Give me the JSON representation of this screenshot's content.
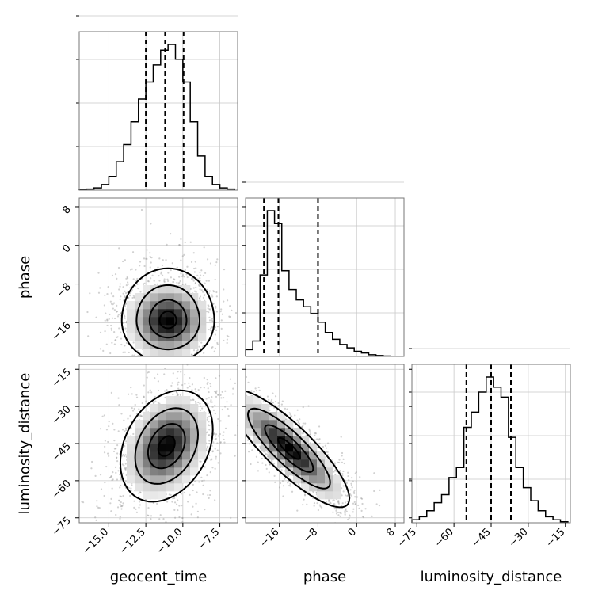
{
  "chart_data": {
    "type": "corner",
    "parameters": [
      "geocent_time",
      "phase",
      "luminosity_distance"
    ],
    "axis_labels": {
      "x": [
        "geocent_time",
        "phase",
        "luminosity_distance"
      ],
      "y": [
        "",
        "phase",
        "luminosity_distance"
      ]
    },
    "ranges": {
      "geocent_time": [
        -17.0,
        -6.3
      ],
      "phase": [
        -23.0,
        9.8
      ],
      "luminosity_distance": [
        -77,
        -13
      ]
    },
    "ticks": {
      "geocent_time": [
        -15.0,
        -12.5,
        -10.0,
        -7.5
      ],
      "phase": [
        -16,
        -8,
        0,
        8
      ],
      "luminosity_distance": [
        -75,
        -60,
        -45,
        -30,
        -15
      ]
    },
    "tick_labels": {
      "geocent_time": [
        "−15.0",
        "−12.5",
        "−10.0",
        "−7.5"
      ],
      "phase": [
        "−16",
        "−8",
        "0",
        "8"
      ],
      "luminosity_distance": [
        "−75",
        "−60",
        "−45",
        "−30",
        "−15"
      ]
    },
    "quantiles": {
      "geocent_time": [
        -12.5,
        -11.2,
        -9.95
      ],
      "phase": [
        -19.2,
        -16.2,
        -8.0
      ],
      "luminosity_distance": [
        -55,
        -45,
        -37
      ]
    },
    "histograms": {
      "geocent_time": {
        "bins": [
          -17.0,
          -16.5,
          -16.0,
          -15.5,
          -15.0,
          -14.5,
          -14.0,
          -13.5,
          -13.0,
          -12.5,
          -12.0,
          -11.5,
          -11.0,
          -10.5,
          -10.0,
          -9.5,
          -9.0,
          -8.5,
          -8.0,
          -7.5,
          -7.0,
          -6.5
        ],
        "counts": [
          0.5,
          1,
          2,
          5,
          12,
          25,
          40,
          60,
          80,
          95,
          110,
          123,
          128,
          115,
          95,
          60,
          30,
          12,
          5,
          2,
          1
        ]
      },
      "phase": {
        "bins": [
          -23.0,
          -21.5,
          -20.0,
          -18.5,
          -17.0,
          -15.5,
          -14.0,
          -12.5,
          -11.0,
          -9.5,
          -8.0,
          -6.5,
          -5.0,
          -3.5,
          -2.0,
          -0.5,
          1.0,
          2.5,
          4.0,
          5.5,
          7.0
        ],
        "counts": [
          8,
          18,
          95,
          170,
          155,
          100,
          78,
          66,
          58,
          50,
          40,
          28,
          20,
          14,
          10,
          6,
          4,
          2,
          1,
          0.5
        ]
      },
      "luminosity_distance": {
        "bins": [
          -77,
          -74,
          -71,
          -68,
          -65,
          -62,
          -59,
          -56,
          -53,
          -50,
          -47,
          -44,
          -41,
          -38,
          -35,
          -32,
          -29,
          -26,
          -23,
          -20,
          -17,
          -14
        ],
        "counts": [
          3,
          6,
          12,
          20,
          28,
          45,
          55,
          95,
          110,
          130,
          145,
          135,
          125,
          85,
          55,
          35,
          22,
          12,
          6,
          3,
          1
        ]
      }
    },
    "joint": [
      {
        "x": "geocent_time",
        "y": "phase",
        "center": [
          -11.0,
          -15.6
        ],
        "sigma": [
          1.25,
          3.5
        ],
        "rho": 0.0,
        "skew_y": 0.4
      },
      {
        "x": "geocent_time",
        "y": "luminosity_distance",
        "center": [
          -11.1,
          -46
        ],
        "sigma": [
          1.25,
          9.0
        ],
        "rho": 0.3,
        "skew_y": 0.0
      },
      {
        "x": "phase",
        "y": "luminosity_distance",
        "center": [
          -14.0,
          -47
        ],
        "sigma": [
          5.0,
          9.5
        ],
        "rho": -0.85,
        "skew_y": 0.0
      }
    ]
  }
}
